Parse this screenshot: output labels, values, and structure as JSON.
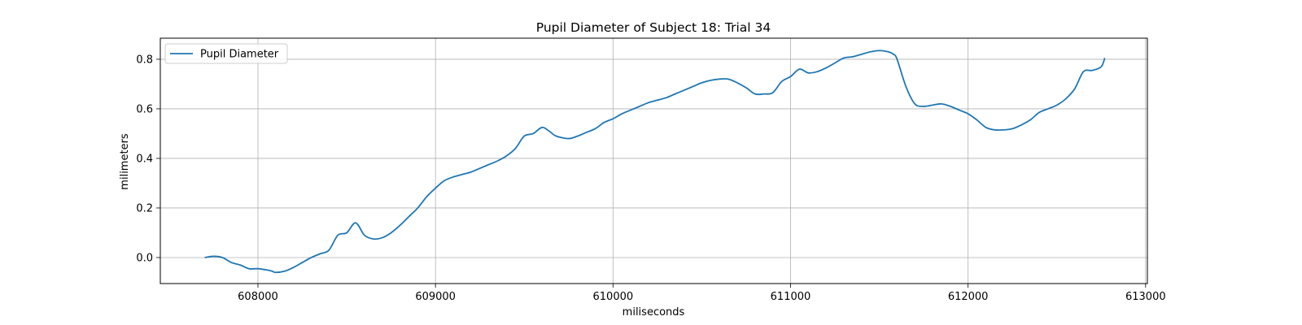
{
  "chart_data": {
    "type": "line",
    "title": "Pupil Diameter of Subject 18: Trial 34",
    "xlabel": "miliseconds",
    "ylabel": "milimeters",
    "xlim": [
      607450,
      613010
    ],
    "ylim": [
      -0.105,
      0.885
    ],
    "xticks": [
      608000,
      609000,
      610000,
      611000,
      612000,
      613000
    ],
    "yticks": [
      0.0,
      0.2,
      0.4,
      0.6,
      0.8
    ],
    "xtick_labels": [
      "608000",
      "609000",
      "610000",
      "611000",
      "612000",
      "613000"
    ],
    "ytick_labels": [
      "0.0",
      "0.2",
      "0.4",
      "0.6",
      "0.8"
    ],
    "grid": true,
    "legend_position": "top-left",
    "series": [
      {
        "name": "Pupil Diameter",
        "color": "#1f77b4",
        "x": [
          607700,
          607750,
          607800,
          607850,
          607900,
          607950,
          608000,
          608050,
          608080,
          608100,
          608150,
          608200,
          608250,
          608300,
          608350,
          608400,
          608450,
          608500,
          608550,
          608600,
          608650,
          608700,
          608750,
          608800,
          608850,
          608900,
          608950,
          609000,
          609050,
          609100,
          609150,
          609200,
          609250,
          609300,
          609350,
          609400,
          609450,
          609500,
          609550,
          609600,
          609640,
          609680,
          609750,
          609800,
          609850,
          609900,
          609950,
          610000,
          610050,
          610100,
          610150,
          610200,
          610250,
          610300,
          610350,
          610400,
          610450,
          610500,
          610550,
          610600,
          610650,
          610700,
          610750,
          610800,
          610850,
          610900,
          610950,
          611000,
          611050,
          611100,
          611150,
          611200,
          611250,
          611300,
          611350,
          611400,
          611450,
          611500,
          611550,
          611580,
          611600,
          611650,
          611700,
          611750,
          611800,
          611850,
          611900,
          611950,
          612000,
          612050,
          612100,
          612150,
          612200,
          612250,
          612300,
          612350,
          612400,
          612450,
          612500,
          612550,
          612600,
          612650,
          612700,
          612750,
          612770
        ],
        "values": [
          0.0,
          0.005,
          0.0,
          -0.02,
          -0.03,
          -0.045,
          -0.045,
          -0.05,
          -0.055,
          -0.06,
          -0.055,
          -0.04,
          -0.02,
          0.0,
          0.015,
          0.03,
          0.09,
          0.1,
          0.14,
          0.09,
          0.075,
          0.08,
          0.1,
          0.13,
          0.165,
          0.2,
          0.245,
          0.28,
          0.31,
          0.325,
          0.335,
          0.345,
          0.36,
          0.375,
          0.39,
          0.41,
          0.44,
          0.49,
          0.5,
          0.525,
          0.51,
          0.49,
          0.48,
          0.49,
          0.505,
          0.52,
          0.545,
          0.56,
          0.58,
          0.595,
          0.61,
          0.625,
          0.635,
          0.645,
          0.66,
          0.675,
          0.69,
          0.705,
          0.715,
          0.72,
          0.72,
          0.705,
          0.685,
          0.66,
          0.66,
          0.665,
          0.71,
          0.73,
          0.76,
          0.745,
          0.75,
          0.765,
          0.785,
          0.805,
          0.81,
          0.82,
          0.83,
          0.835,
          0.83,
          0.82,
          0.8,
          0.69,
          0.62,
          0.61,
          0.615,
          0.62,
          0.61,
          0.595,
          0.58,
          0.555,
          0.525,
          0.515,
          0.515,
          0.52,
          0.535,
          0.555,
          0.585,
          0.6,
          0.615,
          0.64,
          0.68,
          0.75,
          0.755,
          0.77,
          0.805
        ]
      }
    ]
  }
}
